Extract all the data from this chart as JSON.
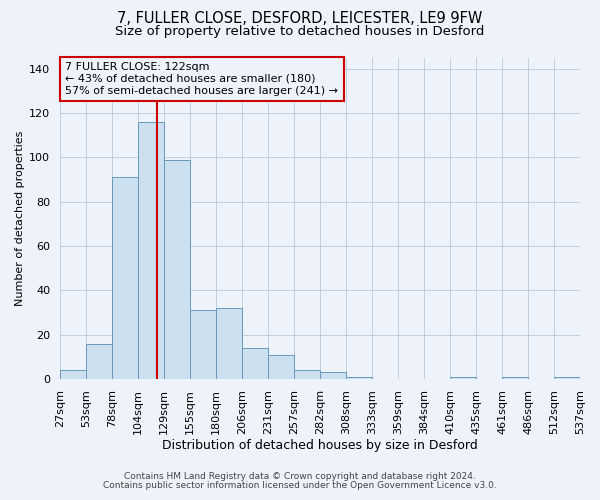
{
  "title1": "7, FULLER CLOSE, DESFORD, LEICESTER, LE9 9FW",
  "title2": "Size of property relative to detached houses in Desford",
  "xlabel": "Distribution of detached houses by size in Desford",
  "ylabel": "Number of detached properties",
  "footer1": "Contains HM Land Registry data © Crown copyright and database right 2024.",
  "footer2": "Contains public sector information licensed under the Open Government Licence v3.0.",
  "bin_labels": [
    "27sqm",
    "53sqm",
    "78sqm",
    "104sqm",
    "129sqm",
    "155sqm",
    "180sqm",
    "206sqm",
    "231sqm",
    "257sqm",
    "282sqm",
    "308sqm",
    "333sqm",
    "359sqm",
    "384sqm",
    "410sqm",
    "435sqm",
    "461sqm",
    "486sqm",
    "512sqm",
    "537sqm"
  ],
  "bar_values": [
    4,
    16,
    91,
    116,
    99,
    31,
    32,
    14,
    11,
    4,
    3,
    1,
    0,
    0,
    0,
    1,
    0,
    1,
    0,
    1
  ],
  "bar_color": "#cce0f0",
  "bar_edge_color": "#6699bb",
  "ylim": [
    0,
    145
  ],
  "yticks": [
    0,
    20,
    40,
    60,
    80,
    100,
    120,
    140
  ],
  "property_label": "7 FULLER CLOSE: 122sqm",
  "annotation_line1": "← 43% of detached houses are smaller (180)",
  "annotation_line2": "57% of semi-detached houses are larger (241) →",
  "vline_color": "#cc0000",
  "annotation_box_color": "#cc0000",
  "bg_color": "#eef2fa",
  "grid_color": "#b0c0d8",
  "title1_fontsize": 10.5,
  "title2_fontsize": 9.5,
  "annotation_fontsize": 8,
  "xlabel_fontsize": 9,
  "ylabel_fontsize": 8,
  "tick_fontsize": 8,
  "footer_fontsize": 6.5
}
